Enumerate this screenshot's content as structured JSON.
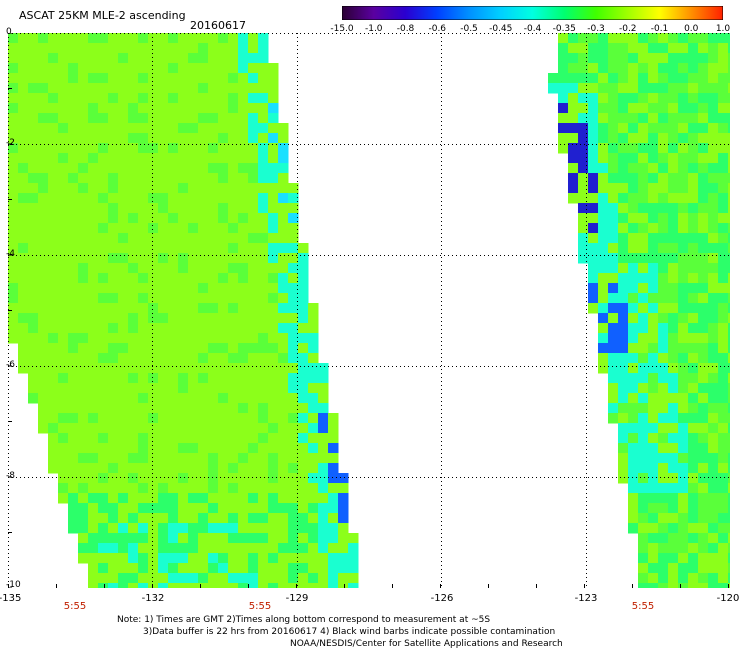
{
  "header": {
    "title": "ASCAT 25KM MLE-2 ascending",
    "date": "20160617"
  },
  "colorbar": {
    "labels": [
      "-15.0",
      "-1.0",
      "-0.8",
      "-0.6",
      "-0.5",
      "-0.45",
      "-0.4",
      "-0.35",
      "-0.3",
      "-0.2",
      "-0.1",
      "0.0",
      "1.0"
    ],
    "colors": [
      "#2b0033",
      "#5a00a0",
      "#2a00d0",
      "#0040ff",
      "#0090ff",
      "#00d0ff",
      "#00ffe0",
      "#00ff70",
      "#40ff00",
      "#a0ff00",
      "#ffff00",
      "#ff9000",
      "#ff2000"
    ]
  },
  "map": {
    "y_ticks": [
      "0",
      "-2",
      "-4",
      "-6",
      "-8",
      "-10"
    ],
    "x_ticks": [
      "-135",
      "-132",
      "-129",
      "-126",
      "-123",
      "-120"
    ],
    "times": [
      "5:55",
      "5:55",
      "5:55"
    ],
    "grid": true,
    "swath_colors": {
      "base": "#8cff1a",
      "light_green": "#5aff3a",
      "green": "#2cff6a",
      "cyan": "#1affd0",
      "light_blue": "#1ae0ff",
      "blue": "#1060ff",
      "dark_blue": "#2020d0"
    }
  },
  "notes": {
    "line1": "Note: 1) Times are GMT 2)Times along bottom correspond to measurement at ~5S",
    "line2": "3)Data buffer is 22 hrs from 20160617 4) Black wind barbs indicate possible contamination",
    "line3": "NOAA/NESDIS/Center for Satellite Applications and Research"
  }
}
